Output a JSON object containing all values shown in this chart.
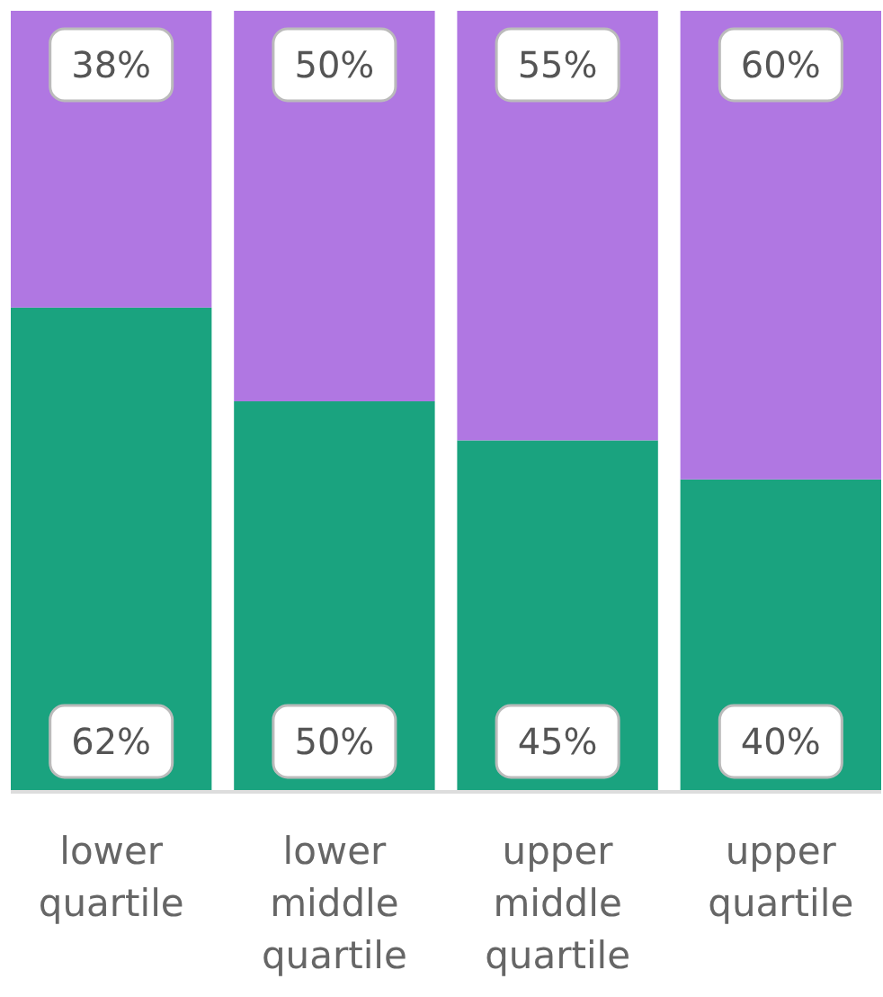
{
  "chart_data": {
    "type": "bar",
    "stacked": true,
    "categories": [
      "lower quartile",
      "lower middle quartile",
      "upper middle quartile",
      "upper quartile"
    ],
    "series": [
      {
        "color": "#1aa37f",
        "values": [
          62,
          50,
          45,
          40
        ],
        "value_labels": [
          "62%",
          "50%",
          "45%",
          "40%"
        ]
      },
      {
        "color": "#b077e2",
        "values": [
          38,
          50,
          55,
          60
        ],
        "value_labels": [
          "38%",
          "50%",
          "55%",
          "60%"
        ]
      }
    ]
  }
}
